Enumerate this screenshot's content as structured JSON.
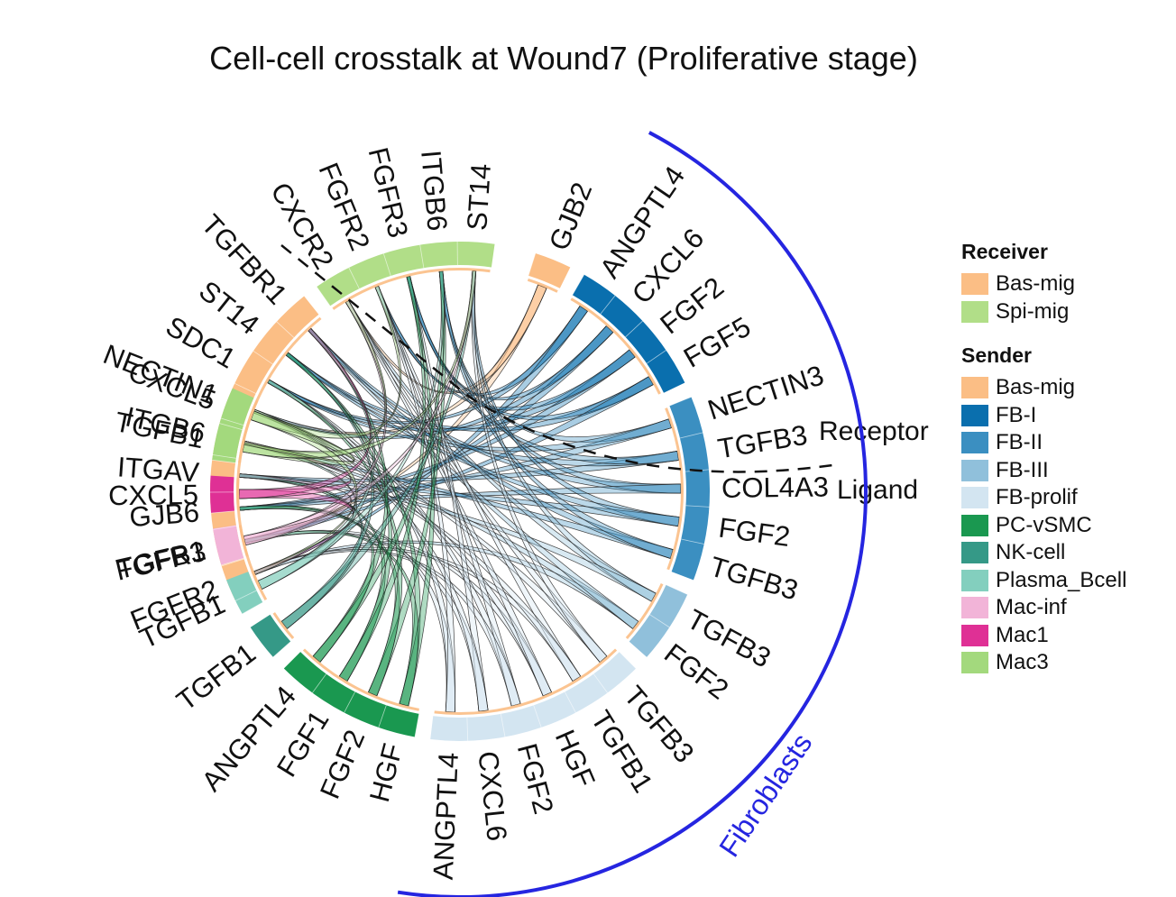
{
  "title": "Cell-cell crosstalk at Wound7 (Proliferative stage)",
  "colors": {
    "Bas-mig": "#fbbe85",
    "Spi-mig": "#b1de88",
    "FB-I": "#0a6fae",
    "FB-II": "#3b8fc1",
    "FB-III": "#90c0db",
    "FB-prolif": "#d3e5f1",
    "PC-vSMC": "#1a9850",
    "NK-cell": "#359987",
    "Plasma_Bcell": "#83cfbe",
    "Mac-inf": "#f2b4d8",
    "Mac1": "#df3095",
    "Mac3": "#a3d97d"
  },
  "legend": {
    "receiver_title": "Receiver",
    "receivers": [
      "Bas-mig",
      "Spi-mig"
    ],
    "sender_title": "Sender",
    "senders": [
      "Bas-mig",
      "FB-I",
      "FB-II",
      "FB-III",
      "FB-prolif",
      "PC-vSMC",
      "NK-cell",
      "Plasma_Bcell",
      "Mac-inf",
      "Mac1",
      "Mac3"
    ]
  },
  "annotations": {
    "receptor_label": "Receptor",
    "ligand_label": "Ligand",
    "group_label": "Fibroblasts"
  },
  "sectors": [
    {
      "cell": "Bas-mig",
      "role": "receiver",
      "genes": [
        "FGFR2",
        "FGFR3",
        "GJB6",
        "ITGAV",
        "ITGB6",
        "NECTIN1",
        "SDC1",
        "ST14",
        "TGFBR1"
      ]
    },
    {
      "cell": "Spi-mig",
      "role": "receiver",
      "genes": [
        "CXCR2",
        "FGFR2",
        "FGFR3",
        "ITGB6",
        "ST14"
      ]
    },
    {
      "cell": "Bas-mig",
      "role": "sender",
      "genes": [
        "GJB2"
      ]
    },
    {
      "cell": "FB-I",
      "role": "sender",
      "genes": [
        "ANGPTL4",
        "CXCL6",
        "FGF2",
        "FGF5"
      ]
    },
    {
      "cell": "FB-II",
      "role": "sender",
      "genes": [
        "NECTIN3",
        "TGFB3",
        "COL4A3",
        "FGF2",
        "TGFB3"
      ]
    },
    {
      "cell": "FB-III",
      "role": "sender",
      "genes": [
        "FGF2",
        "TGFB3"
      ]
    },
    {
      "cell": "FB-prolif",
      "role": "sender",
      "genes": [
        "ANGPTL4",
        "CXCL6",
        "FGF2",
        "HGF",
        "TGFB1",
        "TGFB3"
      ]
    },
    {
      "cell": "PC-vSMC",
      "role": "sender",
      "genes": [
        "ANGPTL4",
        "FGF1",
        "FGF2",
        "HGF"
      ]
    },
    {
      "cell": "NK-cell",
      "role": "sender",
      "genes": [
        "TGFB1"
      ]
    },
    {
      "cell": "Plasma_Bcell",
      "role": "sender",
      "genes": [
        "TGFB1"
      ]
    },
    {
      "cell": "Mac-inf",
      "role": "sender",
      "genes": [
        "TGFB1"
      ]
    },
    {
      "cell": "Mac1",
      "role": "sender",
      "genes": [
        "CXCL5"
      ]
    },
    {
      "cell": "Mac3",
      "role": "sender",
      "genes": [
        "CXCL5",
        "TGFB1"
      ]
    }
  ]
}
